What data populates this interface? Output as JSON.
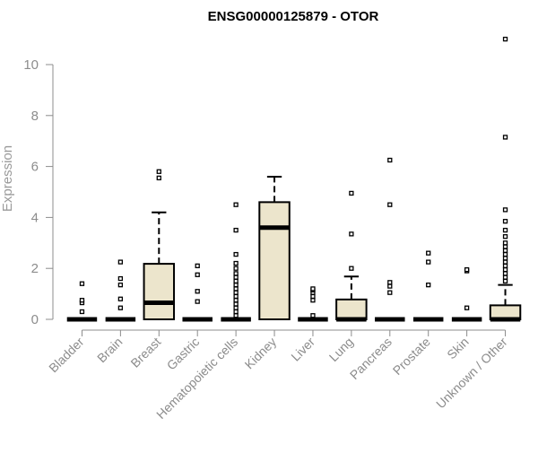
{
  "chart_data": {
    "type": "box",
    "title": "ENSG00000125879 - OTOR",
    "xlabel": "",
    "ylabel": "Expression",
    "ylim": [
      0,
      11
    ],
    "yticks": [
      0,
      2,
      4,
      6,
      8,
      10
    ],
    "grid": false,
    "legend": "none",
    "colors": {
      "box_fill": "#ece5cc",
      "stroke": "#000000",
      "axis": "#8c8c8c"
    },
    "categories": [
      "Bladder",
      "Brain",
      "Breast",
      "Gastric",
      "Hematopoietic cells",
      "Kidney",
      "Liver",
      "Lung",
      "Pancreas",
      "Prostate",
      "Skin",
      "Unknown / Other"
    ],
    "boxes": [
      {
        "q1": 0,
        "median": 0,
        "q3": 0,
        "whisker_low": 0,
        "whisker_high": 0,
        "outliers": [
          0.3,
          0.65,
          0.75,
          1.4
        ]
      },
      {
        "q1": 0,
        "median": 0,
        "q3": 0,
        "whisker_low": 0,
        "whisker_high": 0,
        "outliers": [
          0.45,
          0.8,
          1.35,
          1.6,
          2.25
        ]
      },
      {
        "q1": 0,
        "median": 0.65,
        "q3": 2.18,
        "whisker_low": 0,
        "whisker_high": 4.2,
        "outliers": [
          5.55,
          5.8
        ]
      },
      {
        "q1": 0,
        "median": 0,
        "q3": 0,
        "whisker_low": 0,
        "whisker_high": 0,
        "outliers": [
          0.7,
          1.1,
          1.75,
          2.1
        ]
      },
      {
        "q1": 0,
        "median": 0,
        "q3": 0,
        "whisker_low": 0,
        "whisker_high": 0,
        "outliers": [
          0.15,
          0.3,
          0.45,
          0.6,
          0.75,
          0.9,
          1.05,
          1.2,
          1.35,
          1.5,
          1.65,
          1.8,
          2.0,
          2.2,
          2.55,
          3.5,
          4.5
        ]
      },
      {
        "q1": 0,
        "median": 3.6,
        "q3": 4.6,
        "whisker_low": 0,
        "whisker_high": 5.6,
        "outliers": []
      },
      {
        "q1": 0,
        "median": 0,
        "q3": 0,
        "whisker_low": 0,
        "whisker_high": 0,
        "outliers": [
          0.15,
          0.75,
          0.9,
          1.05,
          1.15,
          1.2
        ]
      },
      {
        "q1": 0,
        "median": 0,
        "q3": 0.78,
        "whisker_low": 0,
        "whisker_high": 1.68,
        "outliers": [
          2.0,
          3.35,
          4.95
        ]
      },
      {
        "q1": 0,
        "median": 0,
        "q3": 0,
        "whisker_low": 0,
        "whisker_high": 0,
        "outliers": [
          1.05,
          1.3,
          1.45,
          4.5,
          6.25
        ]
      },
      {
        "q1": 0,
        "median": 0,
        "q3": 0,
        "whisker_low": 0,
        "whisker_high": 0,
        "outliers": [
          1.35,
          2.25,
          2.6
        ]
      },
      {
        "q1": 0,
        "median": 0,
        "q3": 0,
        "whisker_low": 0,
        "whisker_high": 0,
        "outliers": [
          0.45,
          1.9,
          1.95
        ]
      },
      {
        "q1": 0,
        "median": 0,
        "q3": 0.55,
        "whisker_low": 0,
        "whisker_high": 1.35,
        "outliers": [
          1.5,
          1.65,
          1.8,
          1.95,
          2.1,
          2.25,
          2.4,
          2.55,
          2.7,
          2.85,
          3.0,
          3.25,
          3.5,
          3.85,
          4.3,
          7.15,
          11.0
        ]
      }
    ]
  }
}
